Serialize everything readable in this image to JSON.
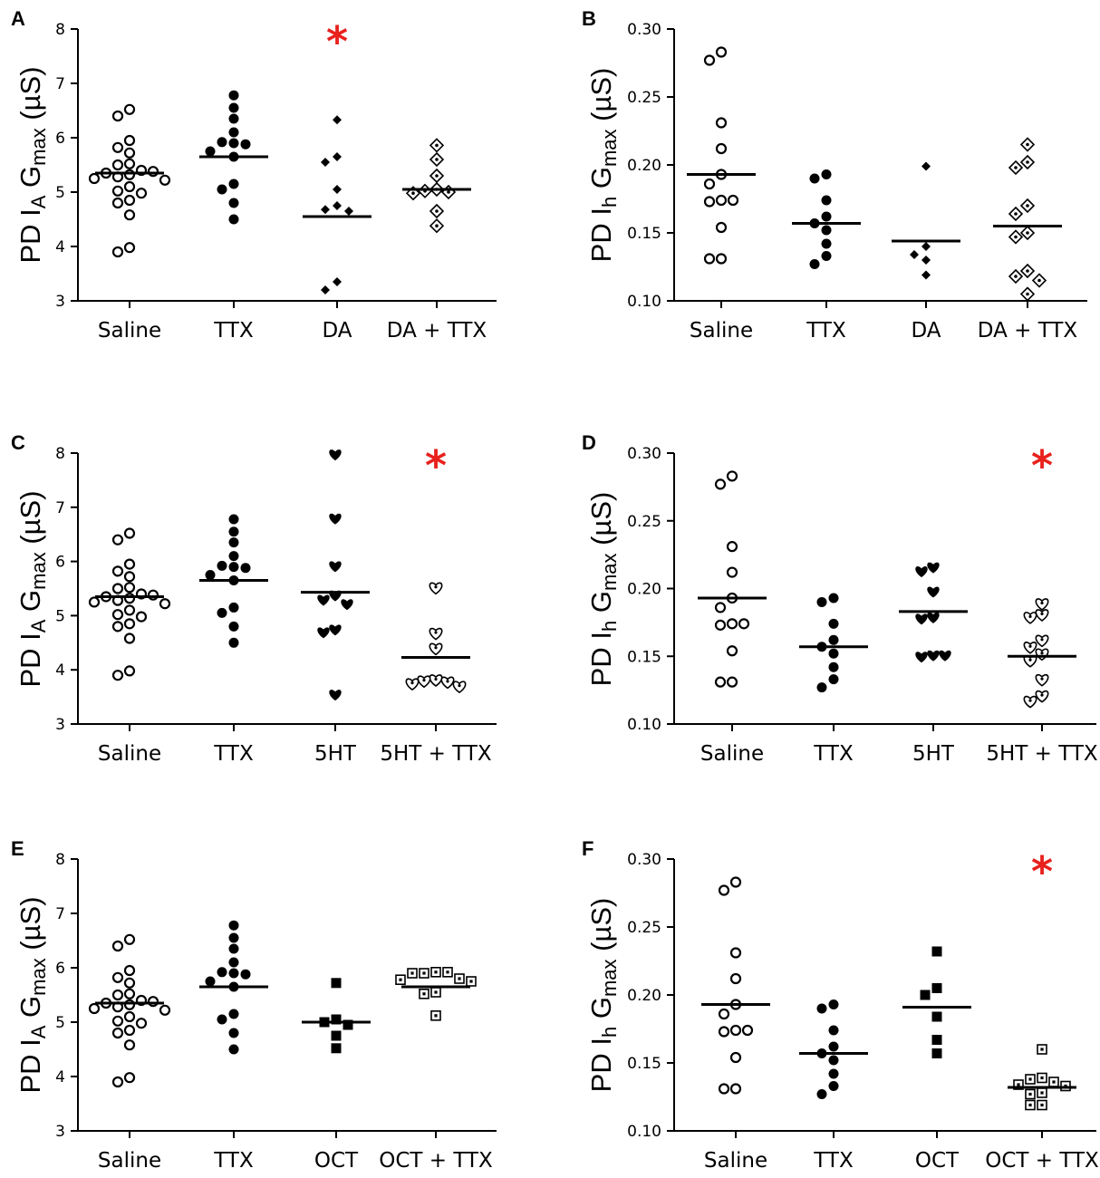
{
  "colors": {
    "star": "#e8211d",
    "ink": "#000000"
  },
  "chart_data": [
    {
      "panel": "A",
      "type": "scatter",
      "ylabel": {
        "main": "PD I",
        "sub1": "A",
        "mid": " G",
        "sub2": "max",
        "unit": " (µS)"
      },
      "ylim": [
        3,
        8
      ],
      "yticks": [
        "3",
        "4",
        "5",
        "6",
        "7",
        "8"
      ],
      "categories": [
        "Saline",
        "TTX",
        "DA",
        "DA + TTX"
      ],
      "markers": [
        "circle-open",
        "circle-filled",
        "diamond-filled",
        "diamond-dotted"
      ],
      "means": [
        5.35,
        5.65,
        4.55,
        5.05
      ],
      "values": [
        [
          6.52,
          6.4,
          5.95,
          5.82,
          5.72,
          5.52,
          5.5,
          5.4,
          5.35,
          5.32,
          5.38,
          5.28,
          5.25,
          5.22,
          5.1,
          5.02,
          4.98,
          4.85,
          4.8,
          4.58,
          3.98,
          3.9
        ],
        [
          6.78,
          6.55,
          6.35,
          6.1,
          5.92,
          5.9,
          5.88,
          5.75,
          5.65,
          5.15,
          5.05,
          4.8,
          4.5
        ],
        [
          6.33,
          5.65,
          5.55,
          5.05,
          4.75,
          4.68,
          4.65,
          3.35,
          3.2
        ],
        [
          5.86,
          5.6,
          5.3,
          5.05,
          5.02,
          5.0,
          4.98,
          4.65,
          4.38
        ]
      ],
      "star_index": 2,
      "star_text": "*"
    },
    {
      "panel": "B",
      "type": "scatter",
      "ylabel": {
        "main": "PD I",
        "sub1": "h",
        "mid": " G",
        "sub2": "max",
        "unit": " (µS)"
      },
      "ylim": [
        0.1,
        0.3
      ],
      "yticks": [
        "0.10",
        "0.15",
        "0.20",
        "0.25",
        "0.30"
      ],
      "categories": [
        "Saline",
        "TTX",
        "DA",
        "DA + TTX"
      ],
      "markers": [
        "circle-open",
        "circle-filled",
        "diamond-filled",
        "diamond-dotted"
      ],
      "means": [
        0.193,
        0.157,
        0.144,
        0.155
      ],
      "values": [
        [
          0.283,
          0.277,
          0.231,
          0.212,
          0.193,
          0.186,
          0.174,
          0.173,
          0.174,
          0.154,
          0.131,
          0.131
        ],
        [
          0.193,
          0.19,
          0.174,
          0.162,
          0.157,
          0.152,
          0.142,
          0.133,
          0.127
        ],
        [
          0.199,
          0.14,
          0.134,
          0.13,
          0.119
        ],
        [
          0.215,
          0.202,
          0.198,
          0.17,
          0.164,
          0.15,
          0.147,
          0.122,
          0.118,
          0.115,
          0.105
        ]
      ]
    },
    {
      "panel": "C",
      "type": "scatter",
      "ylabel": {
        "main": "PD I",
        "sub1": "A",
        "mid": " G",
        "sub2": "max",
        "unit": " (µS)"
      },
      "ylim": [
        3,
        8
      ],
      "yticks": [
        "3",
        "4",
        "5",
        "6",
        "7",
        "8"
      ],
      "categories": [
        "Saline",
        "TTX",
        "5HT",
        "5HT + TTX"
      ],
      "markers": [
        "circle-open",
        "circle-filled",
        "heart-filled",
        "heart-dotted"
      ],
      "means": [
        5.35,
        5.65,
        5.43,
        4.23
      ],
      "values": [
        [
          6.52,
          6.4,
          5.95,
          5.82,
          5.72,
          5.52,
          5.5,
          5.4,
          5.35,
          5.32,
          5.38,
          5.28,
          5.25,
          5.22,
          5.1,
          5.02,
          4.98,
          4.85,
          4.8,
          4.58,
          3.98,
          3.9
        ],
        [
          6.78,
          6.55,
          6.35,
          6.1,
          5.92,
          5.9,
          5.88,
          5.75,
          5.65,
          5.15,
          5.05,
          4.8,
          4.5
        ],
        [
          7.98,
          6.8,
          5.92,
          5.38,
          5.3,
          5.22,
          4.75,
          4.7,
          3.55
        ],
        [
          5.52,
          4.68,
          4.4,
          3.82,
          3.8,
          3.78,
          3.75,
          3.7
        ]
      ],
      "star_index": 3,
      "star_text": "*"
    },
    {
      "panel": "D",
      "type": "scatter",
      "ylabel": {
        "main": "PD I",
        "sub1": "h",
        "mid": " G",
        "sub2": "max",
        "unit": " (µS)"
      },
      "ylim": [
        0.1,
        0.3
      ],
      "yticks": [
        "0.10",
        "0.15",
        "0.20",
        "0.25",
        "0.30"
      ],
      "categories": [
        "Saline",
        "TTX",
        "5HT",
        "5HT + TTX"
      ],
      "markers": [
        "circle-open",
        "circle-filled",
        "heart-filled",
        "heart-dotted"
      ],
      "means": [
        0.193,
        0.157,
        0.183,
        0.15
      ],
      "values": [
        [
          0.283,
          0.277,
          0.231,
          0.212,
          0.193,
          0.186,
          0.174,
          0.173,
          0.174,
          0.154,
          0.131,
          0.131
        ],
        [
          0.193,
          0.19,
          0.174,
          0.162,
          0.157,
          0.152,
          0.142,
          0.133,
          0.127
        ],
        [
          0.216,
          0.213,
          0.198,
          0.179,
          0.178,
          0.151,
          0.15,
          0.151
        ],
        [
          0.189,
          0.181,
          0.179,
          0.162,
          0.157,
          0.152,
          0.147,
          0.133,
          0.121,
          0.117
        ]
      ],
      "star_index": 3,
      "star_text": "*"
    },
    {
      "panel": "E",
      "type": "scatter",
      "ylabel": {
        "main": "PD I",
        "sub1": "A",
        "mid": " G",
        "sub2": "max",
        "unit": " (µS)"
      },
      "ylim": [
        3,
        8
      ],
      "yticks": [
        "3",
        "4",
        "5",
        "6",
        "7",
        "8"
      ],
      "categories": [
        "Saline",
        "TTX",
        "OCT",
        "OCT + TTX"
      ],
      "markers": [
        "circle-open",
        "circle-filled",
        "square-filled",
        "square-dotted"
      ],
      "means": [
        5.35,
        5.65,
        5.0,
        5.65
      ],
      "values": [
        [
          6.52,
          6.4,
          5.95,
          5.82,
          5.72,
          5.52,
          5.5,
          5.4,
          5.35,
          5.32,
          5.38,
          5.28,
          5.25,
          5.22,
          5.1,
          5.02,
          4.98,
          4.85,
          4.8,
          4.58,
          3.98,
          3.9
        ],
        [
          6.78,
          6.55,
          6.35,
          6.1,
          5.92,
          5.9,
          5.88,
          5.75,
          5.65,
          5.15,
          5.05,
          4.8,
          4.5
        ],
        [
          5.72,
          5.05,
          5.0,
          4.95,
          4.75,
          4.52
        ],
        [
          5.92,
          5.9,
          5.92,
          5.9,
          5.8,
          5.78,
          5.75,
          5.55,
          5.52,
          5.12
        ]
      ]
    },
    {
      "panel": "F",
      "type": "scatter",
      "ylabel": {
        "main": "PD I",
        "sub1": "h",
        "mid": " G",
        "sub2": "max",
        "unit": " (µS)"
      },
      "ylim": [
        0.1,
        0.3
      ],
      "yticks": [
        "0.10",
        "0.15",
        "0.20",
        "0.25",
        "0.30"
      ],
      "categories": [
        "Saline",
        "TTX",
        "OCT",
        "OCT + TTX"
      ],
      "markers": [
        "circle-open",
        "circle-filled",
        "square-filled",
        "square-dotted"
      ],
      "means": [
        0.193,
        0.157,
        0.191,
        0.132
      ],
      "values": [
        [
          0.283,
          0.277,
          0.231,
          0.212,
          0.193,
          0.186,
          0.174,
          0.173,
          0.174,
          0.154,
          0.131,
          0.131
        ],
        [
          0.193,
          0.19,
          0.174,
          0.162,
          0.157,
          0.152,
          0.142,
          0.133,
          0.127
        ],
        [
          0.232,
          0.205,
          0.2,
          0.184,
          0.167,
          0.157
        ],
        [
          0.16,
          0.139,
          0.138,
          0.136,
          0.134,
          0.133,
          0.128,
          0.127,
          0.119,
          0.119
        ]
      ],
      "star_index": 3,
      "star_text": "*"
    }
  ]
}
